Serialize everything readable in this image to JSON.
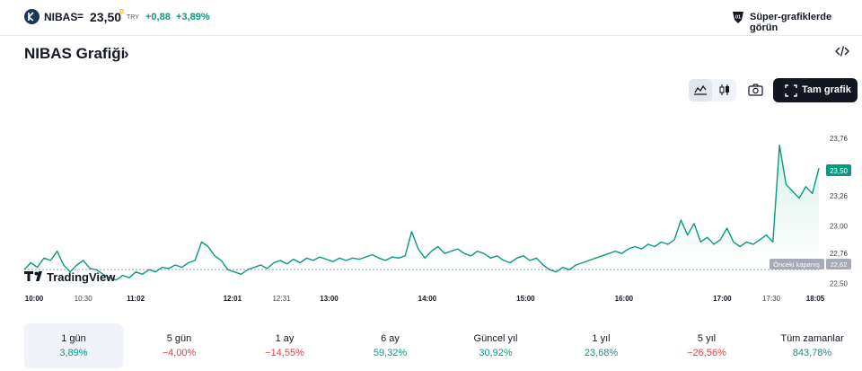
{
  "header": {
    "symbol": "NIBAS",
    "equals": "=",
    "price": "23,50",
    "delayed_mark": "D",
    "currency": "TRY",
    "change": "+0,88",
    "change_percent": "+3,89%",
    "super_charts_link": "Süper-grafiklerde görün"
  },
  "title": "NIBAS Grafiği",
  "title_chevron": "›",
  "toolbar": {
    "full_chart": "Tam grafik",
    "active_mode": "area"
  },
  "chart_data": {
    "type": "area",
    "x_ticks": [
      "10:00",
      "10:30",
      "11:02",
      "12:01",
      "12:31",
      "13:00",
      "14:00",
      "15:00",
      "16:00",
      "17:00",
      "17:30",
      "18:05"
    ],
    "x_ticks_bold": [
      "10:00",
      "11:02",
      "12:01",
      "13:00",
      "14:00",
      "15:00",
      "16:00",
      "17:00",
      "18:05"
    ],
    "y_ticks": [
      "23,76",
      "23,50",
      "23,26",
      "23,00",
      "22,76",
      "22,62",
      "22,50"
    ],
    "y_range": [
      22.45,
      24.0
    ],
    "current_price_label": "23,50",
    "previous_close": {
      "label": "Önceki kapanış",
      "value": "22,62",
      "numeric": 22.62
    },
    "colors": {
      "line": "#089981",
      "area_top": "#c8eee2",
      "prev_close": "#9aa0ab",
      "badge": "#089981"
    },
    "values": [
      22.62,
      22.68,
      22.64,
      22.72,
      22.7,
      22.78,
      22.66,
      22.6,
      22.66,
      22.7,
      22.63,
      22.62,
      22.58,
      22.55,
      22.53,
      22.57,
      22.55,
      22.6,
      22.58,
      22.62,
      22.6,
      22.64,
      22.63,
      22.66,
      22.64,
      22.68,
      22.7,
      22.86,
      22.82,
      22.74,
      22.7,
      22.62,
      22.6,
      22.58,
      22.62,
      22.64,
      22.66,
      22.63,
      22.68,
      22.7,
      22.67,
      22.71,
      22.68,
      22.72,
      22.7,
      22.73,
      22.71,
      22.69,
      22.72,
      22.7,
      22.72,
      22.71,
      22.73,
      22.75,
      22.72,
      22.7,
      22.73,
      22.72,
      22.74,
      22.95,
      22.8,
      22.72,
      22.78,
      22.82,
      22.76,
      22.78,
      22.8,
      22.76,
      22.74,
      22.78,
      22.76,
      22.72,
      22.74,
      22.7,
      22.68,
      22.72,
      22.74,
      22.7,
      22.72,
      22.66,
      22.62,
      22.6,
      22.64,
      22.62,
      22.66,
      22.68,
      22.7,
      22.72,
      22.74,
      22.76,
      22.78,
      22.76,
      22.8,
      22.82,
      22.8,
      22.84,
      22.82,
      22.86,
      22.84,
      22.88,
      23.05,
      22.92,
      23.02,
      22.86,
      22.9,
      22.84,
      22.88,
      22.98,
      22.86,
      22.82,
      22.86,
      22.84,
      22.88,
      22.92,
      22.86,
      23.7,
      23.36,
      23.3,
      23.24,
      23.34,
      23.28,
      23.5
    ],
    "x_range": [
      "10:00",
      "18:05"
    ]
  },
  "watermark": "TradingView",
  "ranges": [
    {
      "label": "1 gün",
      "value": "3,89%",
      "trend": "pos",
      "active": true
    },
    {
      "label": "5 gün",
      "value": "−4,00%",
      "trend": "neg",
      "active": false
    },
    {
      "label": "1 ay",
      "value": "−14,55%",
      "trend": "neg",
      "active": false
    },
    {
      "label": "6 ay",
      "value": "59,32%",
      "trend": "pos",
      "active": false
    },
    {
      "label": "Güncel yıl",
      "value": "30,92%",
      "trend": "pos",
      "active": false
    },
    {
      "label": "1 yıl",
      "value": "23,68%",
      "trend": "pos",
      "active": false
    },
    {
      "label": "5 yıl",
      "value": "−26,56%",
      "trend": "neg",
      "active": false
    },
    {
      "label": "Tüm zamanlar",
      "value": "843,78%",
      "trend": "pos",
      "active": false
    }
  ]
}
